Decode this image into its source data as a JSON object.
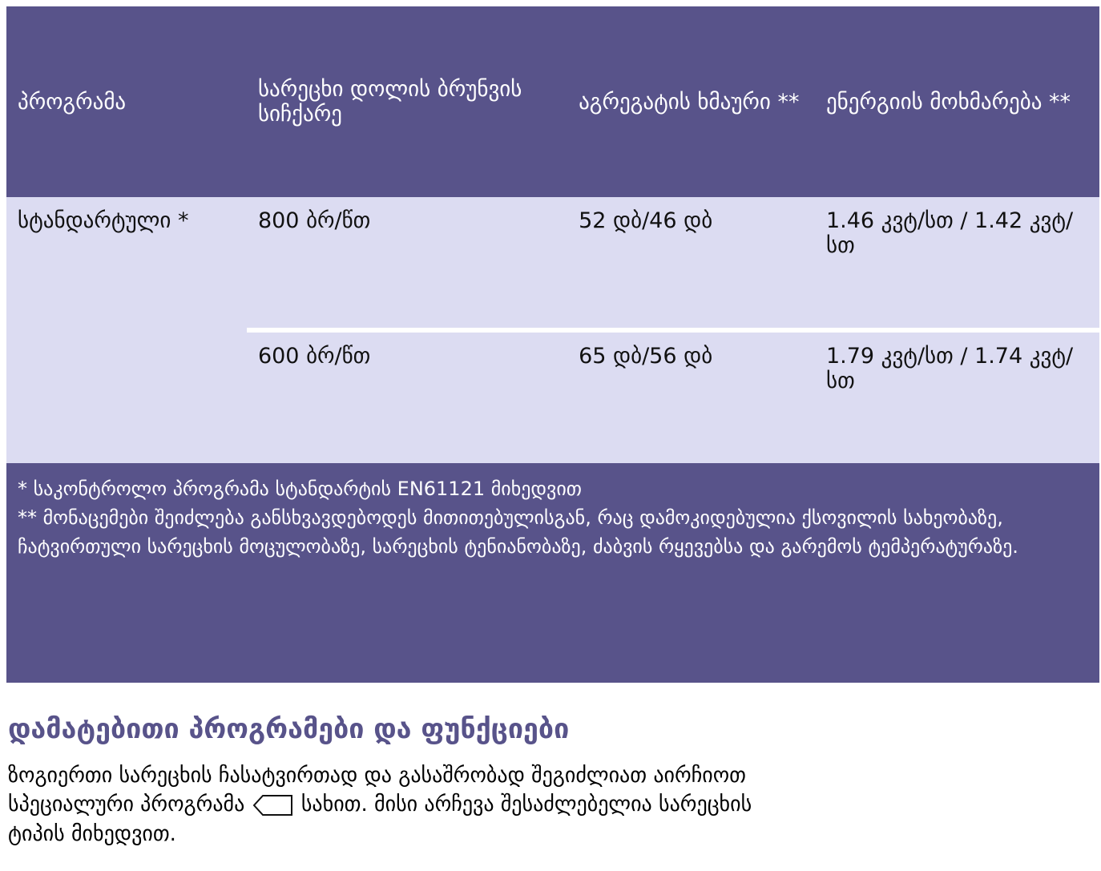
{
  "table": {
    "headers": [
      "პროგრამა",
      "სარეცხი დოლის ბრუნვის სიჩქარე",
      "აგრეგატის ხმაური **",
      "ენერგიის მოხმარება **"
    ],
    "rows": [
      [
        "სტანდარტული *",
        "800 ბრ/წთ",
        "52 დბ/46 დბ",
        "1.46 კვტ/სთ / 1.42 კვტ/სთ"
      ],
      [
        "600 ბრ/წთ",
        "65 დბ/56 დბ",
        "1.79 კვტ/სთ / 1.74 კვტ/სთ"
      ]
    ],
    "footnotes": [
      "* საკონტროლო პროგრამა სტანდარტის EN61121 მიხედვით",
      "** მონაცემები შეიძლება განსხვავდებოდეს მითითებულისგან, რაც დამოკიდებულია ქსოვილის სახეობაზე, ჩატვირთული სარეცხის მოცულობაზე, სარეცხის ტენიანობაზე, ძაბვის რყევებსა და გარემოს ტემპერატურაზე."
    ]
  },
  "section": {
    "title": "დამატებითი პროგრამები და ფუნქციები",
    "text_before": "ზოგიერთი სარეცხის ჩასატვირთად და გასაშრობად შეგიძლიათ აირჩიოთ სპეციალური პროგრამა",
    "text_after": "სახით. მისი არჩევა შესაძლებელია სარეცხის ტიპის მიხედვით."
  }
}
